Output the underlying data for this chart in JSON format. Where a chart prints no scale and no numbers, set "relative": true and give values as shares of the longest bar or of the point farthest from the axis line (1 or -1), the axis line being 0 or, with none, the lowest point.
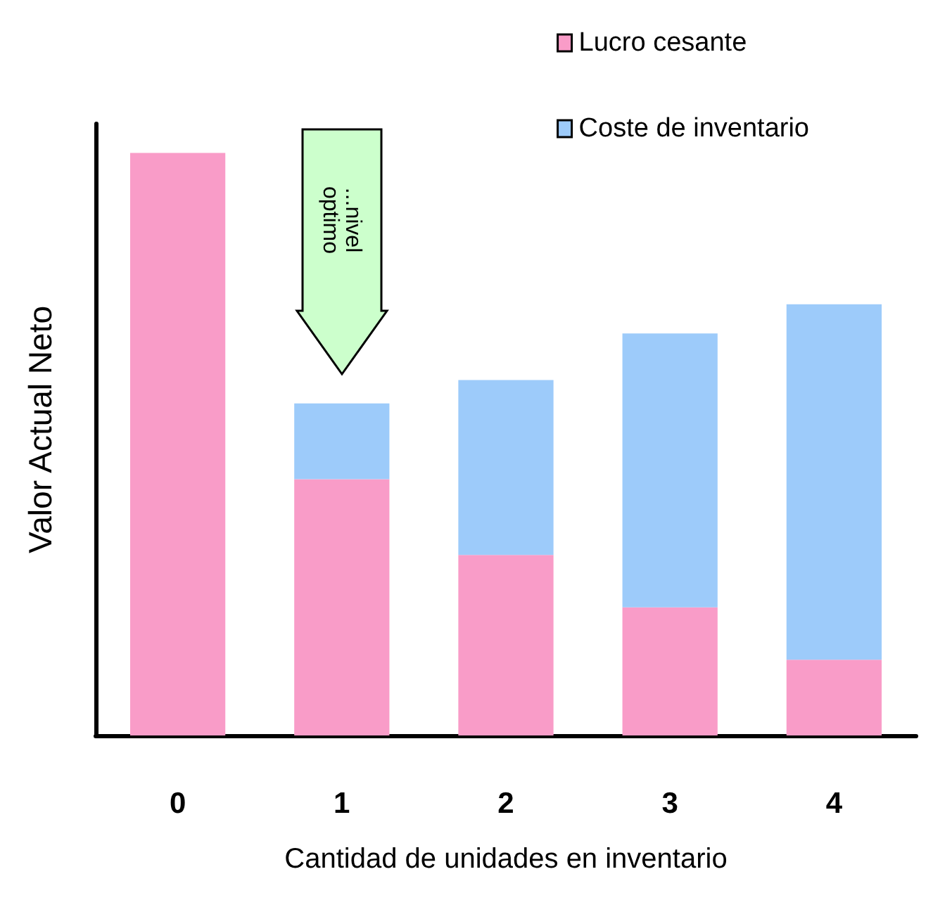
{
  "chart_data": {
    "type": "bar",
    "stacked": true,
    "relative": true,
    "xlabel": "Cantidad de unidades en inventario",
    "ylabel": "Valor Actual Neto",
    "categories": [
      "0",
      "1",
      "2",
      "3",
      "4"
    ],
    "legend": "top right",
    "grid": false,
    "series": [
      {
        "name": "Lucro cesante",
        "color": "#f99cc8",
        "values": [
          1,
          0.44,
          0.31,
          0.22,
          0.13
        ]
      },
      {
        "name": "Coste de inventario",
        "color": "#9dcbfa",
        "values": [
          0,
          0.13,
          0.3,
          0.47,
          0.61
        ]
      }
    ],
    "annotations": [
      "...nivel optimo"
    ]
  }
}
